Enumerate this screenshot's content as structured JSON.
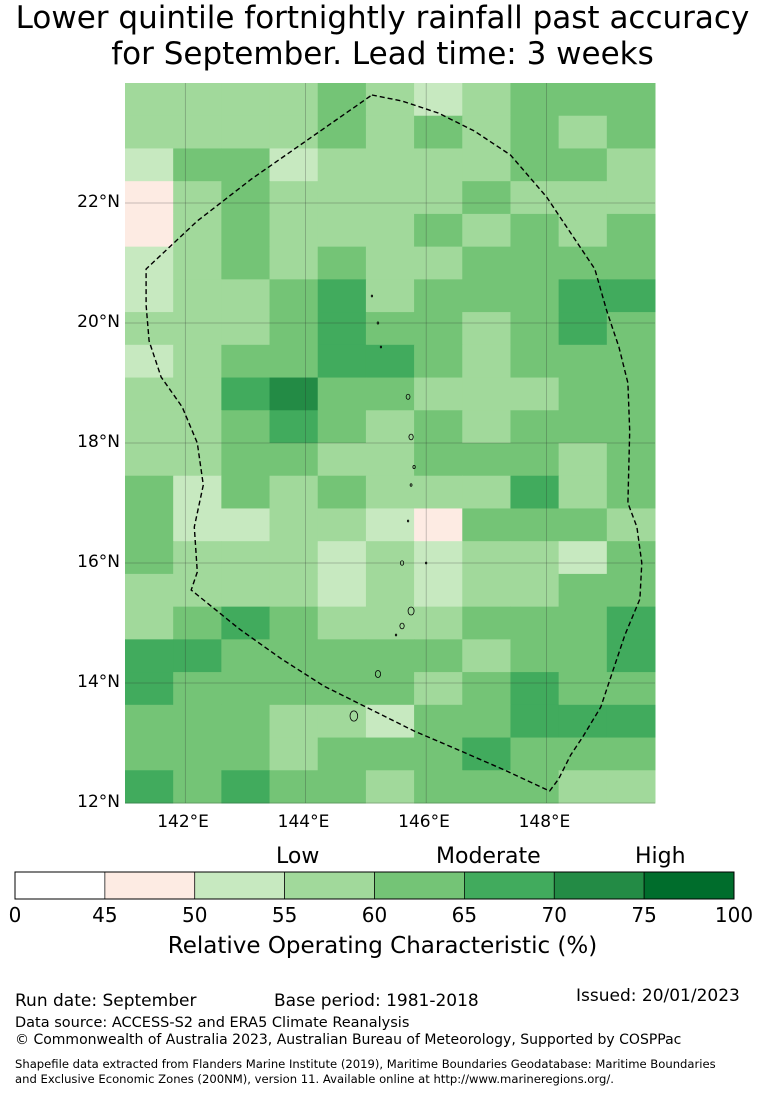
{
  "title": {
    "line1": "Lower quintile fortnightly rainfall past accuracy",
    "line2": "for September. Lead time: 3 weeks"
  },
  "map": {
    "lat_range": [
      12,
      24
    ],
    "lon_range": [
      141,
      149.8
    ],
    "lat_ticks": [
      "12°N",
      "14°N",
      "16°N",
      "18°N",
      "20°N",
      "22°N"
    ],
    "lon_ticks": [
      "142°E",
      "144°E",
      "146°E",
      "148°E"
    ],
    "grid_rows_top_to_bottom": [
      [
        3,
        3,
        3,
        3,
        4,
        3,
        2,
        3,
        4,
        4,
        4
      ],
      [
        3,
        3,
        3,
        3,
        4,
        3,
        4,
        3,
        4,
        3,
        4
      ],
      [
        2,
        4,
        4,
        2,
        3,
        3,
        3,
        3,
        4,
        4,
        3
      ],
      [
        1,
        3,
        4,
        3,
        3,
        3,
        3,
        4,
        3,
        3,
        3
      ],
      [
        1,
        3,
        4,
        3,
        3,
        3,
        4,
        3,
        4,
        3,
        4
      ],
      [
        2,
        3,
        4,
        3,
        4,
        3,
        3,
        4,
        4,
        4,
        4
      ],
      [
        2,
        3,
        3,
        4,
        5,
        3,
        4,
        4,
        4,
        5,
        5
      ],
      [
        3,
        3,
        3,
        4,
        5,
        4,
        4,
        3,
        4,
        5,
        4
      ],
      [
        2,
        3,
        4,
        4,
        5,
        5,
        4,
        3,
        4,
        4,
        4
      ],
      [
        3,
        3,
        5,
        6,
        4,
        4,
        3,
        3,
        3,
        4,
        4
      ],
      [
        3,
        3,
        4,
        5,
        4,
        3,
        4,
        3,
        4,
        4,
        4
      ],
      [
        3,
        3,
        4,
        4,
        3,
        3,
        4,
        4,
        4,
        3,
        4
      ],
      [
        4,
        2,
        4,
        3,
        4,
        3,
        3,
        3,
        5,
        3,
        4
      ],
      [
        4,
        2,
        2,
        3,
        3,
        2,
        1,
        4,
        4,
        4,
        3
      ],
      [
        4,
        3,
        3,
        3,
        2,
        3,
        2,
        3,
        3,
        2,
        4
      ],
      [
        3,
        3,
        3,
        3,
        2,
        3,
        2,
        3,
        3,
        4,
        4
      ],
      [
        3,
        4,
        5,
        4,
        3,
        3,
        3,
        4,
        4,
        4,
        5
      ],
      [
        5,
        5,
        4,
        4,
        4,
        4,
        4,
        3,
        4,
        4,
        5
      ],
      [
        5,
        4,
        4,
        4,
        4,
        4,
        3,
        4,
        5,
        4,
        4
      ],
      [
        4,
        4,
        4,
        3,
        3,
        2,
        4,
        4,
        5,
        5,
        5
      ],
      [
        4,
        4,
        4,
        3,
        4,
        4,
        4,
        5,
        4,
        4,
        4
      ],
      [
        5,
        4,
        5,
        4,
        4,
        3,
        4,
        4,
        4,
        3,
        3
      ]
    ],
    "boundary_lonlat": [
      [
        145.1,
        23.8
      ],
      [
        145.6,
        23.7
      ],
      [
        146.2,
        23.5
      ],
      [
        146.8,
        23.2
      ],
      [
        147.4,
        22.8
      ],
      [
        148.0,
        22.1
      ],
      [
        148.4,
        21.5
      ],
      [
        148.8,
        20.9
      ],
      [
        149.0,
        20.2
      ],
      [
        149.2,
        19.6
      ],
      [
        149.35,
        19.0
      ],
      [
        149.38,
        18.2
      ],
      [
        149.35,
        17.0
      ],
      [
        149.5,
        16.6
      ],
      [
        149.58,
        16.0
      ],
      [
        149.55,
        15.4
      ],
      [
        149.3,
        14.8
      ],
      [
        149.1,
        14.2
      ],
      [
        148.9,
        13.6
      ],
      [
        148.6,
        13.1
      ],
      [
        148.4,
        12.8
      ],
      [
        148.2,
        12.4
      ],
      [
        148.05,
        12.2
      ],
      [
        147.3,
        12.55
      ],
      [
        146.5,
        12.9
      ],
      [
        145.8,
        13.2
      ],
      [
        145.0,
        13.6
      ],
      [
        144.3,
        13.95
      ],
      [
        143.6,
        14.4
      ],
      [
        142.9,
        14.9
      ],
      [
        142.1,
        15.55
      ],
      [
        142.2,
        15.85
      ],
      [
        142.15,
        16.6
      ],
      [
        142.3,
        17.3
      ],
      [
        142.2,
        18.0
      ],
      [
        141.95,
        18.6
      ],
      [
        141.6,
        19.1
      ],
      [
        141.4,
        19.7
      ],
      [
        141.35,
        20.3
      ],
      [
        141.35,
        20.9
      ],
      [
        142.2,
        21.7
      ],
      [
        143.1,
        22.4
      ],
      [
        144.1,
        23.1
      ],
      [
        145.1,
        23.8
      ]
    ],
    "boundary_style": "dashed"
  },
  "colorbar": {
    "categories": [
      "Low",
      "Moderate",
      "High"
    ],
    "ticks": [
      "0",
      "45",
      "50",
      "55",
      "60",
      "65",
      "70",
      "75",
      "100"
    ],
    "colors": [
      "#ffffff",
      "#fdebe3",
      "#c7e9c0",
      "#a1d99b",
      "#74c476",
      "#41ab5d",
      "#238b45",
      "#006d2c"
    ],
    "label": "Relative Operating Characteristic (%)"
  },
  "footer": {
    "run_date": "Run date: September",
    "base_period": "Base period: 1981-2018",
    "issued": "Issued: 20/01/2023",
    "data_source": "Data source: ACCESS-S2 and ERA5 Climate Reanalysis",
    "copyright": "© Commonwealth of Australia 2023, Australian Bureau of Meteorology, Supported by COSPPac",
    "shapefile_line1": "Shapefile data extracted from Flanders Marine Institute (2019), Maritime Boundaries Geodatabase: Maritime Boundaries",
    "shapefile_line2": "and Exclusive Economic Zones (200NM), version 11. Available online at http://www.marineregions.org/."
  }
}
